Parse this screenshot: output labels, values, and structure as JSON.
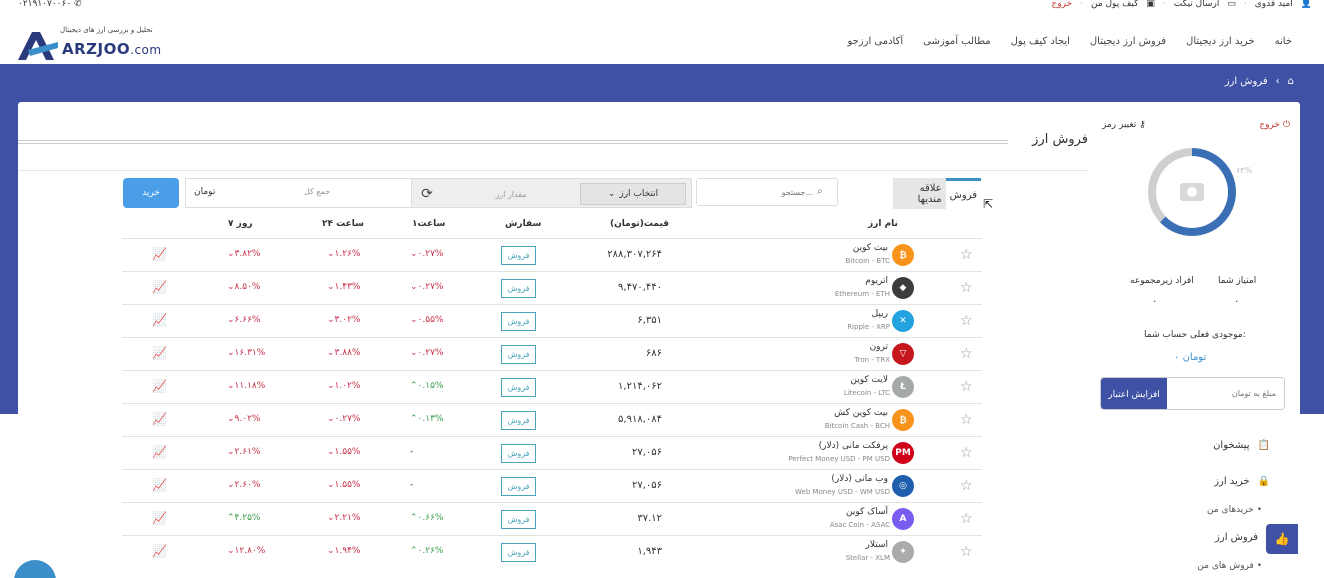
{
  "topbar": {
    "phone": "۰۲۱۹۱۰۷۰۰۶۰",
    "user": "امید فدوی",
    "send_ticket": "ارسال تیکت",
    "wallet": "کیف پول من",
    "logout": "خروج"
  },
  "logo": {
    "tagline": "تحلیل و بررسی ارز های دیجیتال",
    "brand": "ARZJOO",
    "tld": ".com"
  },
  "nav": [
    "خانه",
    "خرید ارز دیجیتال",
    "فروش ارز دیجیتال",
    "ایجاد کیف پول",
    "مطالب آموزشی",
    "آکادمی ارزجو"
  ],
  "breadcrumb": {
    "current": "فروش ارز"
  },
  "page": {
    "title": "فروش ارز"
  },
  "tabs": {
    "sell": "فروش",
    "favorites": "علاقه مندیها"
  },
  "search": {
    "placeholder": "جستجو..."
  },
  "toolbar": {
    "select_label": "انتخاب ارز",
    "amount_placeholder": "مقدار ارز",
    "total_label": "جمع کل",
    "currency": "تومان",
    "buy_button": "خرید"
  },
  "table": {
    "headers": {
      "name": "نام ارز",
      "price": "قیمت(تومان)",
      "order": "سفارش",
      "h1": "۱ساعت",
      "h24": "۲۴ ساعت",
      "d7": "۷ روز"
    },
    "sell_label": "فروش",
    "rows": [
      {
        "name": "بیت کوین",
        "sym": "Bitcoin - BTC",
        "price": "۲۸۸,۳۰۷,۲۶۴",
        "h1": "۰.۲۷%",
        "h1c": "neg",
        "h24": "۱.۲۶%",
        "h24c": "neg",
        "d7": "۳.۸۲%",
        "d7c": "neg",
        "color": "#f7931a",
        "glyph": "₿"
      },
      {
        "name": "اتریوم",
        "sym": "Ethereum - ETH",
        "price": "۹,۴۷۰,۴۴۰",
        "h1": "۰.۲۷%",
        "h1c": "neg",
        "h24": "۱.۴۳%",
        "h24c": "neg",
        "d7": "۸.۵۰%",
        "d7c": "neg",
        "color": "#3c3c3d",
        "glyph": "◆"
      },
      {
        "name": "ریپل",
        "sym": "Ripple - XRP",
        "price": "۶,۳۵۱",
        "h1": "۰.۵۵%",
        "h1c": "neg",
        "h24": "۳.۰۲%",
        "h24c": "neg",
        "d7": "۶.۶۶%",
        "d7c": "neg",
        "color": "#23a2e0",
        "glyph": "✕"
      },
      {
        "name": "ترون",
        "sym": "Tron - TRX",
        "price": "۶۸۶",
        "h1": "۰.۲۷%",
        "h1c": "neg",
        "h24": "۳.۸۸%",
        "h24c": "neg",
        "d7": "۱۶.۳۱%",
        "d7c": "neg",
        "color": "#c4161c",
        "glyph": "▽"
      },
      {
        "name": "لایت کوین",
        "sym": "Litecoin - LTC",
        "price": "۱,۲۱۴,۰۶۲",
        "h1": "۰.۱۵%",
        "h1c": "pos",
        "h24": "۱.۰۲%",
        "h24c": "neg",
        "d7": "۱۱.۱۸%",
        "d7c": "neg",
        "color": "#a6a9aa",
        "glyph": "Ł"
      },
      {
        "name": "بیت کوین کش",
        "sym": "Bitcoin Cash - BCH",
        "price": "۵,۹۱۸,۰۸۴",
        "h1": "۰.۱۳%",
        "h1c": "pos",
        "h24": "۰.۲۷%",
        "h24c": "neg",
        "d7": "۹.۰۲%",
        "d7c": "neg",
        "color": "#f7931a",
        "glyph": "₿"
      },
      {
        "name": "پرفکت مانی (دلار)",
        "sym": "Perfect Money USD - PM USD",
        "price": "۲۷,۰۵۶",
        "h1": "-",
        "h1c": "na",
        "h24": "۱.۵۵%",
        "h24c": "neg",
        "d7": "۲.۶۱%",
        "d7c": "neg",
        "color": "#d0021b",
        "glyph": "PM"
      },
      {
        "name": "وب مانی (دلار)",
        "sym": "Web Money USD - WM USD",
        "price": "۲۷,۰۵۶",
        "h1": "-",
        "h1c": "na",
        "h24": "۱.۵۵%",
        "h24c": "neg",
        "d7": "۲.۶۰%",
        "d7c": "neg",
        "color": "#1f5fae",
        "glyph": "◎"
      },
      {
        "name": "آساک کوین",
        "sym": "Asac Coin - ASAC",
        "price": "۳۷.۱۲",
        "h1": "۰.۶۶%",
        "h1c": "pos",
        "h24": "۲.۲۱%",
        "h24c": "neg",
        "d7": "۴.۲۵%",
        "d7c": "pos",
        "color": "#7b5cf0",
        "glyph": "A"
      },
      {
        "name": "استلار",
        "sym": "Stellar - XLM",
        "price": "۱,۹۴۳",
        "h1": "۰.۲۶%",
        "h1c": "pos",
        "h24": "۱.۹۴%",
        "h24c": "neg",
        "d7": "۱۲.۸۰%",
        "d7c": "neg",
        "color": "#aaaaaa",
        "glyph": "✦"
      }
    ]
  },
  "side": {
    "logout": "خروج",
    "change_password": "تغییر رمز",
    "ring_pct": "۶۳%",
    "score_label": "امتیاز شما",
    "score_value": "۰",
    "referrals_label": "افراد زیرمجموعه",
    "referrals_value": "۰",
    "balance_label": "موجودی فعلی حساب شما:",
    "balance_value": "۰ تومان",
    "credit_placeholder": "مبلغ به تومان",
    "credit_button": "افزایش اعتبار",
    "menu": {
      "dashboard": "پیشخوان",
      "buy": "خرید ارز",
      "my_buys": "خریدهای من",
      "sell": "فروش ارز",
      "my_sells": "فروش های من"
    }
  }
}
